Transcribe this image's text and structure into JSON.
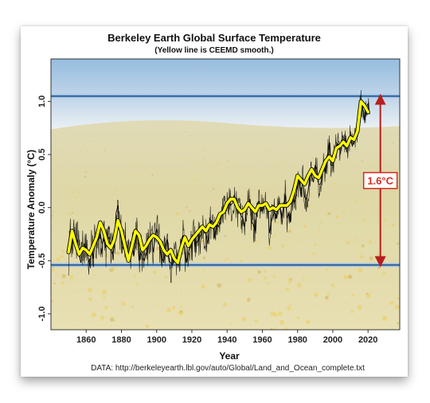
{
  "chart_data": {
    "type": "line",
    "title": "Berkeley Earth Global Surface Temperature",
    "subtitle": "(Yellow line is CEEMD smooth.)",
    "xlabel": "Year",
    "ylabel": "Temperature Anomaly (°C)",
    "xlim": [
      1840,
      2038
    ],
    "ylim": [
      -1.15,
      1.4
    ],
    "xticks": [
      1860,
      1880,
      1900,
      1920,
      1940,
      1960,
      1980,
      2000,
      2020
    ],
    "yticks": [
      -1.0,
      -0.5,
      0.0,
      0.5,
      1.0
    ],
    "ytick_labels": [
      "-1.0",
      "-0.5",
      "0.0",
      "0.5",
      "1.0"
    ],
    "source": "DATA: http://berkeleyearth.lbl.gov/auto/Global/Land_and_Ocean_complete.txt",
    "reference_lines": [
      {
        "y": 1.05,
        "color": "#1d4f8a"
      },
      {
        "y": -0.54,
        "color": "#1d4f8a"
      }
    ],
    "annotation": {
      "label": "1.6°C",
      "x": 2027,
      "y_from": -0.54,
      "y_to": 1.05,
      "color": "#d22b1e"
    },
    "series": [
      {
        "role": "monthly",
        "color": "#000000",
        "x": [
          1850,
          1851,
          1852,
          1853,
          1854,
          1855,
          1856,
          1857,
          1858,
          1859,
          1860,
          1861,
          1862,
          1863,
          1864,
          1865,
          1866,
          1867,
          1868,
          1869,
          1870,
          1871,
          1872,
          1873,
          1874,
          1875,
          1876,
          1877,
          1878,
          1879,
          1880,
          1881,
          1882,
          1883,
          1884,
          1885,
          1886,
          1887,
          1888,
          1889,
          1890,
          1891,
          1892,
          1893,
          1894,
          1895,
          1896,
          1897,
          1898,
          1899,
          1900,
          1901,
          1902,
          1903,
          1904,
          1905,
          1906,
          1907,
          1908,
          1909,
          1910,
          1911,
          1912,
          1913,
          1914,
          1915,
          1916,
          1917,
          1918,
          1919,
          1920,
          1921,
          1922,
          1923,
          1924,
          1925,
          1926,
          1927,
          1928,
          1929,
          1930,
          1931,
          1932,
          1933,
          1934,
          1935,
          1936,
          1937,
          1938,
          1939,
          1940,
          1941,
          1942,
          1943,
          1944,
          1945,
          1946,
          1947,
          1948,
          1949,
          1950,
          1951,
          1952,
          1953,
          1954,
          1955,
          1956,
          1957,
          1958,
          1959,
          1960,
          1961,
          1962,
          1963,
          1964,
          1965,
          1966,
          1967,
          1968,
          1969,
          1970,
          1971,
          1972,
          1973,
          1974,
          1975,
          1976,
          1977,
          1978,
          1979,
          1980,
          1981,
          1982,
          1983,
          1984,
          1985,
          1986,
          1987,
          1988,
          1989,
          1990,
          1991,
          1992,
          1993,
          1994,
          1995,
          1996,
          1997,
          1998,
          1999,
          2000,
          2001,
          2002,
          2003,
          2004,
          2005,
          2006,
          2007,
          2008,
          2009,
          2010,
          2011,
          2012,
          2013,
          2014,
          2015,
          2016,
          2017,
          2018,
          2019,
          2020,
          2021
        ],
        "y": [
          -0.42,
          -0.28,
          -0.35,
          -0.22,
          -0.38,
          -0.3,
          -0.45,
          -0.52,
          -0.4,
          -0.34,
          -0.39,
          -0.47,
          -0.55,
          -0.36,
          -0.48,
          -0.32,
          -0.26,
          -0.3,
          -0.24,
          -0.34,
          -0.3,
          -0.38,
          -0.3,
          -0.28,
          -0.4,
          -0.44,
          -0.36,
          -0.05,
          0.02,
          -0.22,
          -0.28,
          -0.26,
          -0.3,
          -0.38,
          -0.44,
          -0.4,
          -0.36,
          -0.46,
          -0.34,
          -0.22,
          -0.5,
          -0.42,
          -0.48,
          -0.5,
          -0.44,
          -0.4,
          -0.28,
          -0.26,
          -0.42,
          -0.3,
          -0.2,
          -0.28,
          -0.4,
          -0.46,
          -0.52,
          -0.38,
          -0.3,
          -0.5,
          -0.52,
          -0.54,
          -0.48,
          -0.5,
          -0.46,
          -0.46,
          -0.3,
          -0.26,
          -0.44,
          -0.52,
          -0.42,
          -0.36,
          -0.34,
          -0.28,
          -0.36,
          -0.32,
          -0.3,
          -0.26,
          -0.18,
          -0.24,
          -0.24,
          -0.34,
          -0.18,
          -0.12,
          -0.14,
          -0.28,
          -0.14,
          -0.18,
          -0.14,
          -0.02,
          -0.02,
          -0.04,
          0.04,
          0.06,
          0.02,
          0.04,
          0.12,
          0.04,
          -0.06,
          -0.04,
          -0.08,
          -0.1,
          -0.18,
          -0.02,
          0.02,
          0.08,
          -0.14,
          -0.16,
          -0.22,
          0.04,
          0.06,
          0.02,
          -0.04,
          0.04,
          0.02,
          0.04,
          -0.24,
          -0.14,
          -0.08,
          -0.04,
          -0.1,
          0.02,
          0.02,
          -0.1,
          0.0,
          0.12,
          -0.1,
          -0.06,
          -0.14,
          0.12,
          0.04,
          0.1,
          0.2,
          0.24,
          0.1,
          0.28,
          0.1,
          0.08,
          0.16,
          0.3,
          0.3,
          0.24,
          0.4,
          0.36,
          0.22,
          0.22,
          0.3,
          0.42,
          0.32,
          0.48,
          0.62,
          0.4,
          0.4,
          0.52,
          0.58,
          0.6,
          0.54,
          0.64,
          0.58,
          0.62,
          0.52,
          0.6,
          0.68,
          0.58,
          0.62,
          0.64,
          0.72,
          0.88,
          1.0,
          0.92,
          0.82,
          0.94,
          0.98,
          0.88
        ]
      },
      {
        "role": "CEEMD smooth",
        "color": "#ffff00",
        "x": [
          1850,
          1852,
          1854,
          1856,
          1858,
          1860,
          1862,
          1864,
          1866,
          1868,
          1870,
          1872,
          1874,
          1876,
          1878,
          1880,
          1882,
          1884,
          1886,
          1888,
          1890,
          1892,
          1894,
          1896,
          1898,
          1900,
          1902,
          1904,
          1906,
          1908,
          1910,
          1912,
          1914,
          1916,
          1918,
          1920,
          1922,
          1924,
          1926,
          1928,
          1930,
          1932,
          1934,
          1936,
          1938,
          1940,
          1942,
          1944,
          1946,
          1948,
          1950,
          1952,
          1954,
          1956,
          1958,
          1960,
          1962,
          1964,
          1966,
          1968,
          1970,
          1972,
          1974,
          1976,
          1978,
          1980,
          1982,
          1984,
          1986,
          1988,
          1990,
          1992,
          1994,
          1996,
          1998,
          2000,
          2002,
          2004,
          2006,
          2008,
          2010,
          2012,
          2014,
          2016,
          2018,
          2020
        ],
        "y": [
          -0.42,
          -0.22,
          -0.34,
          -0.44,
          -0.38,
          -0.4,
          -0.44,
          -0.36,
          -0.28,
          -0.14,
          -0.22,
          -0.34,
          -0.38,
          -0.3,
          -0.12,
          -0.22,
          -0.36,
          -0.5,
          -0.36,
          -0.22,
          -0.26,
          -0.4,
          -0.36,
          -0.3,
          -0.26,
          -0.28,
          -0.32,
          -0.4,
          -0.44,
          -0.4,
          -0.48,
          -0.52,
          -0.38,
          -0.28,
          -0.36,
          -0.3,
          -0.26,
          -0.22,
          -0.18,
          -0.22,
          -0.16,
          -0.18,
          -0.14,
          -0.06,
          -0.04,
          0.04,
          0.08,
          0.08,
          0.0,
          -0.04,
          -0.02,
          0.04,
          0.0,
          -0.04,
          0.02,
          0.02,
          0.04,
          -0.02,
          0.0,
          -0.02,
          0.02,
          0.02,
          0.02,
          0.06,
          0.16,
          0.3,
          0.26,
          0.22,
          0.3,
          0.36,
          0.3,
          0.28,
          0.36,
          0.44,
          0.48,
          0.44,
          0.56,
          0.58,
          0.62,
          0.58,
          0.66,
          0.64,
          0.72,
          1.0,
          0.96,
          0.9
        ]
      }
    ]
  }
}
